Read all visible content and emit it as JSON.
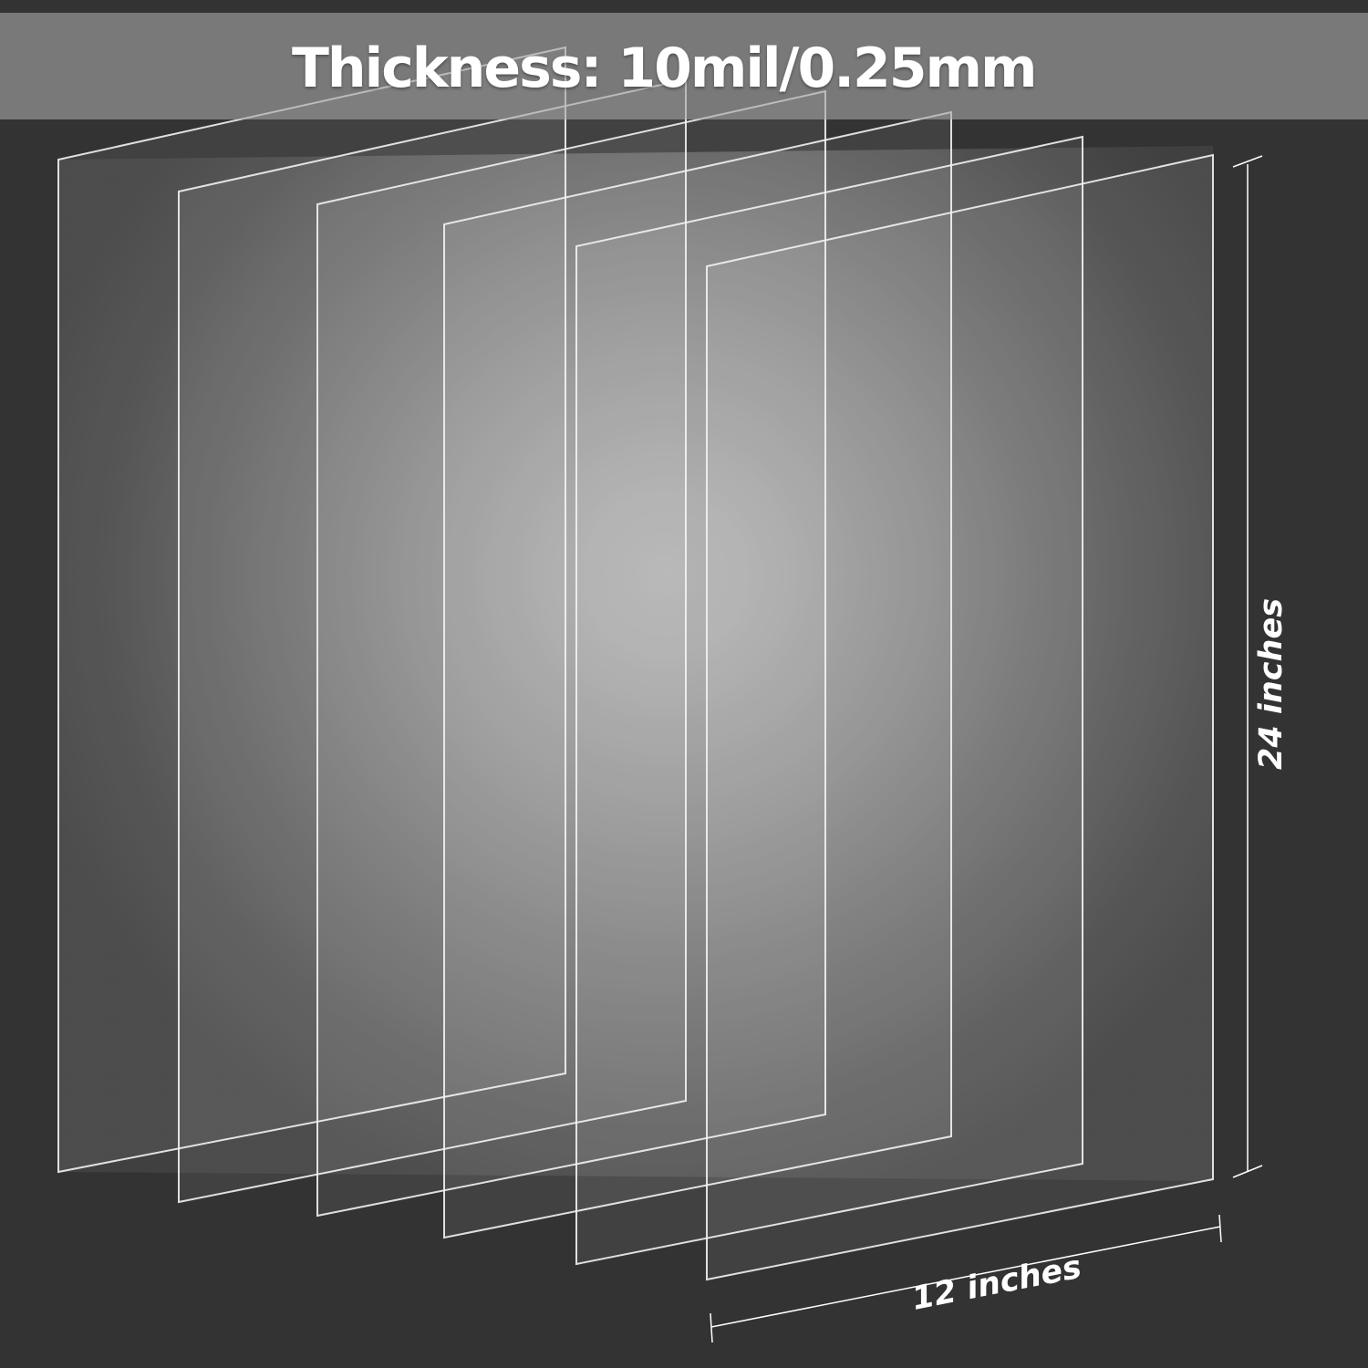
{
  "title": "Thickness: 10mil/0.25mm",
  "dimensions": {
    "height_label": "24 inches",
    "width_label": "12 inches"
  },
  "sheets": {
    "count": 6,
    "edge_color": "#f2f2f2"
  },
  "colors": {
    "background": "#333333",
    "banner": "#a5a5a5",
    "text": "#ffffff"
  }
}
